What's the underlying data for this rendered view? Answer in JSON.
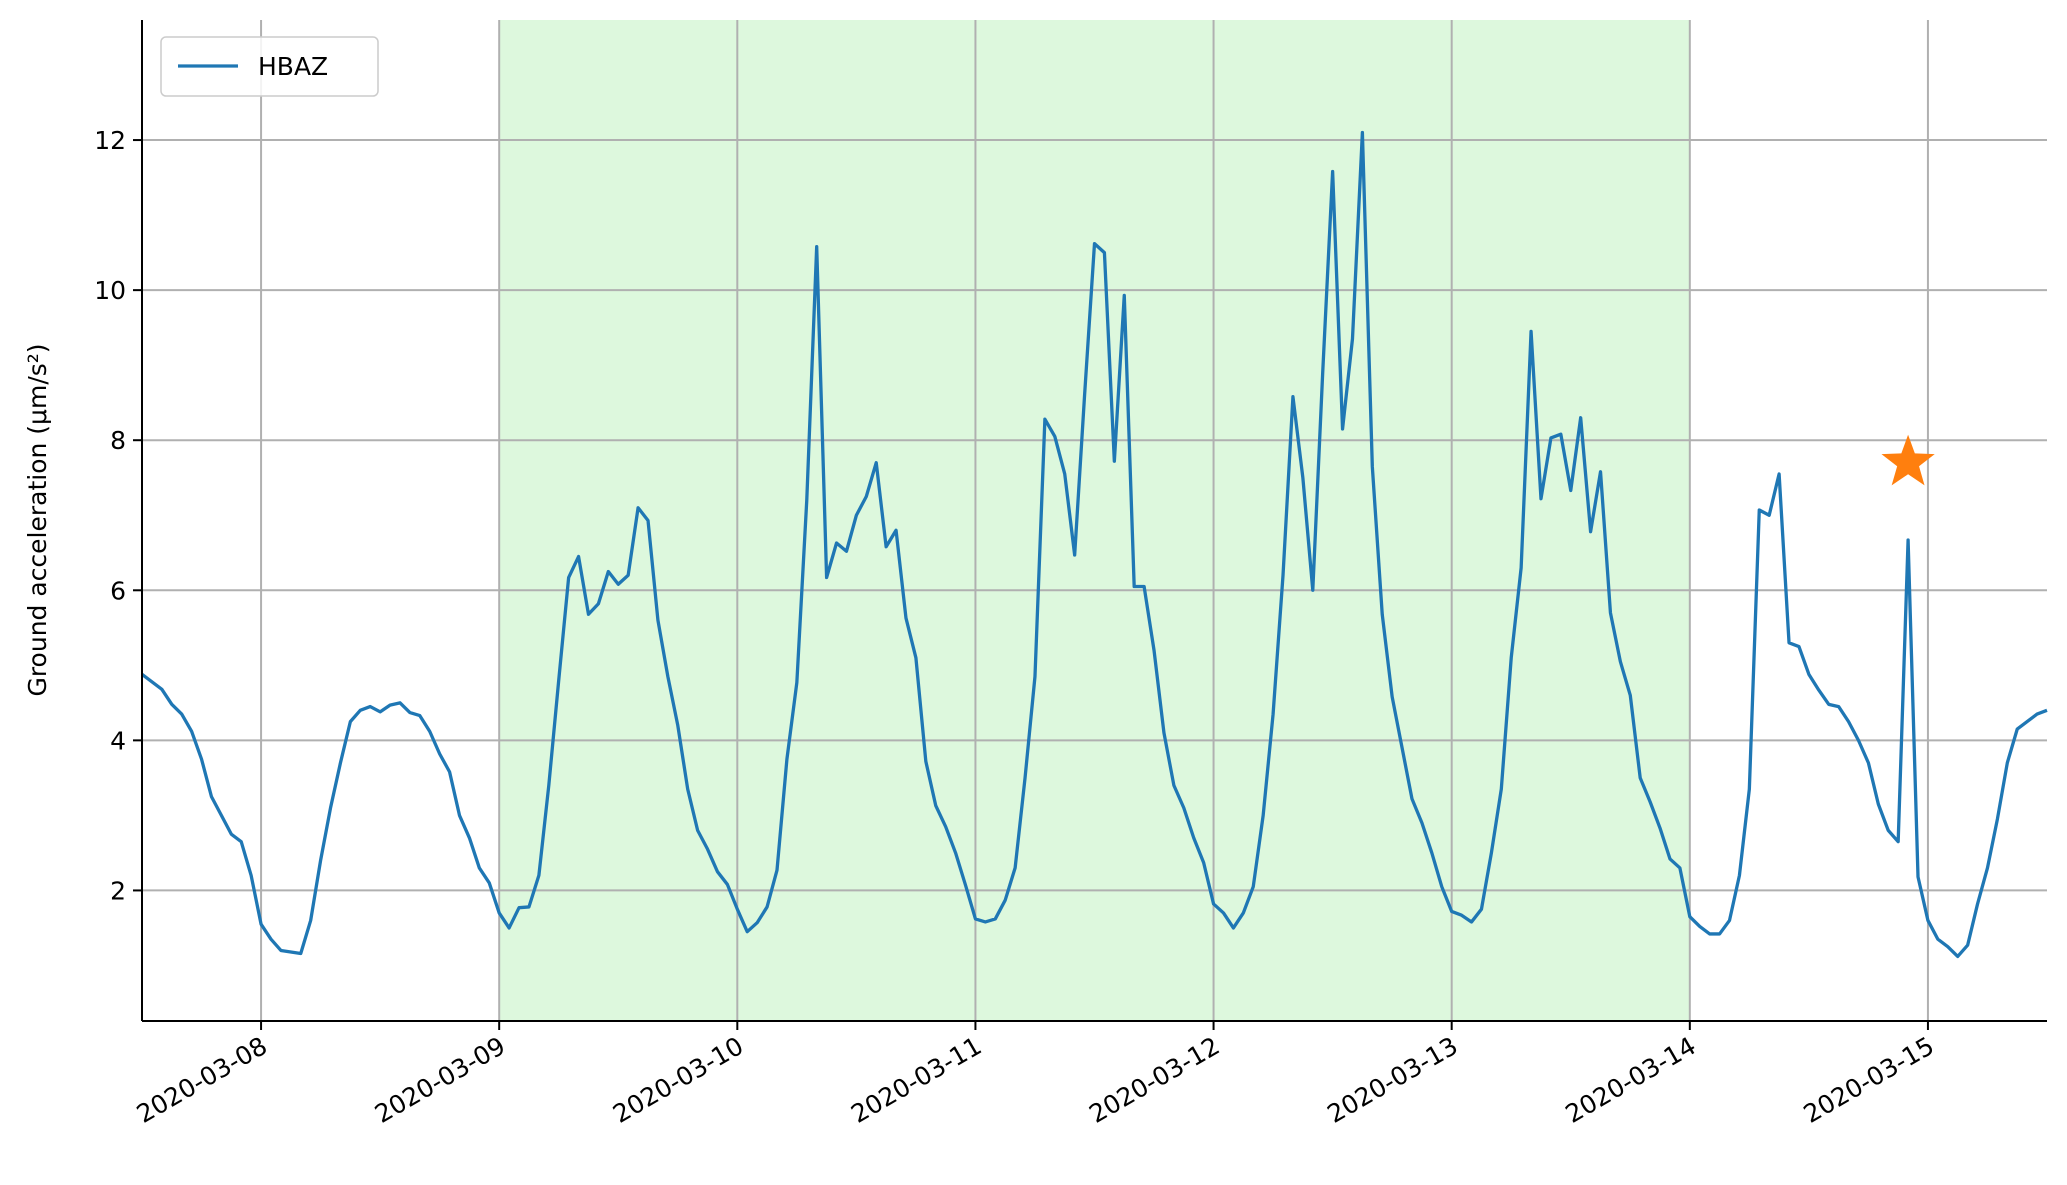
{
  "chart_data": {
    "type": "line",
    "ylabel": "Ground acceleration (μm/s²)",
    "xlim": [
      "2020-03-07 12:00",
      "2020-03-15 12:00"
    ],
    "xticks": [
      "2020-03-08",
      "2020-03-09",
      "2020-03-10",
      "2020-03-11",
      "2020-03-12",
      "2020-03-13",
      "2020-03-14",
      "2020-03-15"
    ],
    "ylim": [
      0.26,
      13.6
    ],
    "yticks": [
      2,
      4,
      6,
      8,
      10,
      12
    ],
    "grid": true,
    "legend": "upper left",
    "span": {
      "start": "2020-03-09",
      "end": "2020-03-14",
      "color": "#ddf8dd"
    },
    "marker": {
      "x": "2020-03-14 22:00",
      "y": 7.7,
      "color": "#ff7f0e"
    },
    "x": [
      "2020-03-07 12:00",
      "2020-03-07 13:00",
      "2020-03-07 14:00",
      "2020-03-07 15:00",
      "2020-03-07 16:00",
      "2020-03-07 17:00",
      "2020-03-07 18:00",
      "2020-03-07 19:00",
      "2020-03-07 20:00",
      "2020-03-07 21:00",
      "2020-03-07 22:00",
      "2020-03-07 23:00",
      "2020-03-08 00:00",
      "2020-03-08 01:00",
      "2020-03-08 02:00",
      "2020-03-08 03:00",
      "2020-03-08 04:00",
      "2020-03-08 05:00",
      "2020-03-08 06:00",
      "2020-03-08 07:00",
      "2020-03-08 08:00",
      "2020-03-08 09:00",
      "2020-03-08 10:00",
      "2020-03-08 11:00",
      "2020-03-08 12:00",
      "2020-03-08 13:00",
      "2020-03-08 14:00",
      "2020-03-08 15:00",
      "2020-03-08 16:00",
      "2020-03-08 17:00",
      "2020-03-08 18:00",
      "2020-03-08 19:00",
      "2020-03-08 20:00",
      "2020-03-08 21:00",
      "2020-03-08 22:00",
      "2020-03-08 23:00",
      "2020-03-09 00:00",
      "2020-03-09 01:00",
      "2020-03-09 02:00",
      "2020-03-09 03:00",
      "2020-03-09 04:00",
      "2020-03-09 05:00",
      "2020-03-09 06:00",
      "2020-03-09 07:00",
      "2020-03-09 08:00",
      "2020-03-09 09:00",
      "2020-03-09 10:00",
      "2020-03-09 11:00",
      "2020-03-09 12:00",
      "2020-03-09 13:00",
      "2020-03-09 14:00",
      "2020-03-09 15:00",
      "2020-03-09 16:00",
      "2020-03-09 17:00",
      "2020-03-09 18:00",
      "2020-03-09 19:00",
      "2020-03-09 20:00",
      "2020-03-09 21:00",
      "2020-03-09 22:00",
      "2020-03-09 23:00",
      "2020-03-10 00:00",
      "2020-03-10 01:00",
      "2020-03-10 02:00",
      "2020-03-10 03:00",
      "2020-03-10 04:00",
      "2020-03-10 05:00",
      "2020-03-10 06:00",
      "2020-03-10 07:00",
      "2020-03-10 08:00",
      "2020-03-10 09:00",
      "2020-03-10 10:00",
      "2020-03-10 11:00",
      "2020-03-10 12:00",
      "2020-03-10 13:00",
      "2020-03-10 14:00",
      "2020-03-10 15:00",
      "2020-03-10 16:00",
      "2020-03-10 17:00",
      "2020-03-10 18:00",
      "2020-03-10 19:00",
      "2020-03-10 20:00",
      "2020-03-10 21:00",
      "2020-03-10 22:00",
      "2020-03-10 23:00",
      "2020-03-11 00:00",
      "2020-03-11 01:00",
      "2020-03-11 02:00",
      "2020-03-11 03:00",
      "2020-03-11 04:00",
      "2020-03-11 05:00",
      "2020-03-11 06:00",
      "2020-03-11 07:00",
      "2020-03-11 08:00",
      "2020-03-11 09:00",
      "2020-03-11 10:00",
      "2020-03-11 11:00",
      "2020-03-11 12:00",
      "2020-03-11 13:00",
      "2020-03-11 14:00",
      "2020-03-11 15:00",
      "2020-03-11 16:00",
      "2020-03-11 17:00",
      "2020-03-11 18:00",
      "2020-03-11 19:00",
      "2020-03-11 20:00",
      "2020-03-11 21:00",
      "2020-03-11 22:00",
      "2020-03-11 23:00",
      "2020-03-12 00:00",
      "2020-03-12 01:00",
      "2020-03-12 02:00",
      "2020-03-12 03:00",
      "2020-03-12 04:00",
      "2020-03-12 05:00",
      "2020-03-12 06:00",
      "2020-03-12 07:00",
      "2020-03-12 08:00",
      "2020-03-12 09:00",
      "2020-03-12 10:00",
      "2020-03-12 11:00",
      "2020-03-12 12:00",
      "2020-03-12 13:00",
      "2020-03-12 14:00",
      "2020-03-12 15:00",
      "2020-03-12 16:00",
      "2020-03-12 17:00",
      "2020-03-12 18:00",
      "2020-03-12 19:00",
      "2020-03-12 20:00",
      "2020-03-12 21:00",
      "2020-03-12 22:00",
      "2020-03-12 23:00",
      "2020-03-13 00:00",
      "2020-03-13 01:00",
      "2020-03-13 02:00",
      "2020-03-13 03:00",
      "2020-03-13 04:00",
      "2020-03-13 05:00",
      "2020-03-13 06:00",
      "2020-03-13 07:00",
      "2020-03-13 08:00",
      "2020-03-13 09:00",
      "2020-03-13 10:00",
      "2020-03-13 11:00",
      "2020-03-13 12:00",
      "2020-03-13 13:00",
      "2020-03-13 14:00",
      "2020-03-13 15:00",
      "2020-03-13 16:00",
      "2020-03-13 17:00",
      "2020-03-13 18:00",
      "2020-03-13 19:00",
      "2020-03-13 20:00",
      "2020-03-13 21:00",
      "2020-03-13 22:00",
      "2020-03-13 23:00",
      "2020-03-14 00:00",
      "2020-03-14 01:00",
      "2020-03-14 02:00",
      "2020-03-14 03:00",
      "2020-03-14 04:00",
      "2020-03-14 05:00",
      "2020-03-14 06:00",
      "2020-03-14 07:00",
      "2020-03-14 08:00",
      "2020-03-14 09:00",
      "2020-03-14 10:00",
      "2020-03-14 11:00",
      "2020-03-14 12:00",
      "2020-03-14 13:00",
      "2020-03-14 14:00",
      "2020-03-14 15:00",
      "2020-03-14 16:00",
      "2020-03-14 17:00",
      "2020-03-14 18:00",
      "2020-03-14 19:00",
      "2020-03-14 20:00",
      "2020-03-14 21:00",
      "2020-03-14 22:00",
      "2020-03-14 23:00",
      "2020-03-15 00:00",
      "2020-03-15 01:00",
      "2020-03-15 02:00",
      "2020-03-15 03:00",
      "2020-03-15 04:00",
      "2020-03-15 05:00",
      "2020-03-15 06:00",
      "2020-03-15 07:00",
      "2020-03-15 08:00",
      "2020-03-15 09:00",
      "2020-03-15 10:00",
      "2020-03-15 11:00",
      "2020-03-15 12:00"
    ],
    "series": [
      {
        "name": "HBAZ",
        "color": "#1f77b4",
        "values": [
          4.88,
          4.78,
          4.68,
          4.48,
          4.35,
          4.12,
          3.75,
          3.25,
          3.0,
          2.75,
          2.65,
          2.2,
          1.55,
          1.35,
          1.2,
          1.18,
          1.16,
          1.6,
          2.4,
          3.1,
          3.7,
          4.25,
          4.4,
          4.45,
          4.38,
          4.47,
          4.5,
          4.37,
          4.33,
          4.12,
          3.82,
          3.58,
          3.0,
          2.7,
          2.3,
          2.1,
          1.7,
          1.5,
          1.77,
          1.78,
          2.2,
          3.4,
          4.8,
          6.17,
          6.45,
          5.68,
          5.82,
          6.25,
          6.08,
          6.2,
          7.1,
          6.93,
          5.6,
          4.85,
          4.2,
          3.35,
          2.8,
          2.55,
          2.25,
          2.08,
          1.75,
          1.45,
          1.57,
          1.78,
          2.27,
          3.75,
          4.77,
          7.2,
          10.58,
          6.17,
          6.63,
          6.52,
          7.0,
          7.25,
          7.7,
          6.58,
          6.8,
          5.63,
          5.1,
          3.72,
          3.13,
          2.85,
          2.5,
          2.07,
          1.62,
          1.58,
          1.62,
          1.87,
          2.3,
          3.5,
          4.85,
          8.28,
          8.05,
          7.55,
          6.47,
          8.6,
          10.62,
          10.5,
          7.72,
          9.93,
          6.05,
          6.05,
          5.2,
          4.1,
          3.4,
          3.1,
          2.7,
          2.37,
          1.82,
          1.7,
          1.5,
          1.7,
          2.05,
          3.0,
          4.35,
          6.2,
          8.58,
          7.5,
          6.0,
          8.9,
          11.58,
          8.15,
          9.35,
          12.1,
          7.65,
          5.68,
          4.58,
          3.9,
          3.22,
          2.9,
          2.5,
          2.05,
          1.72,
          1.67,
          1.58,
          1.75,
          2.5,
          3.35,
          5.1,
          6.3,
          9.45,
          7.22,
          8.03,
          8.08,
          7.33,
          8.3,
          6.78,
          7.58,
          5.7,
          5.05,
          4.6,
          3.5,
          3.18,
          2.83,
          2.42,
          2.3,
          1.65,
          1.52,
          1.42,
          1.42,
          1.6,
          2.2,
          3.35,
          7.07,
          7.0,
          7.55,
          5.3,
          5.25,
          4.88,
          4.67,
          4.48,
          4.45,
          4.25,
          4.0,
          3.7,
          3.15,
          2.8,
          2.65,
          6.67,
          2.18,
          1.6,
          1.35,
          1.25,
          1.12,
          1.27,
          1.82,
          2.3,
          2.95,
          3.7,
          4.15,
          4.25,
          4.35,
          4.4
        ]
      }
    ]
  }
}
